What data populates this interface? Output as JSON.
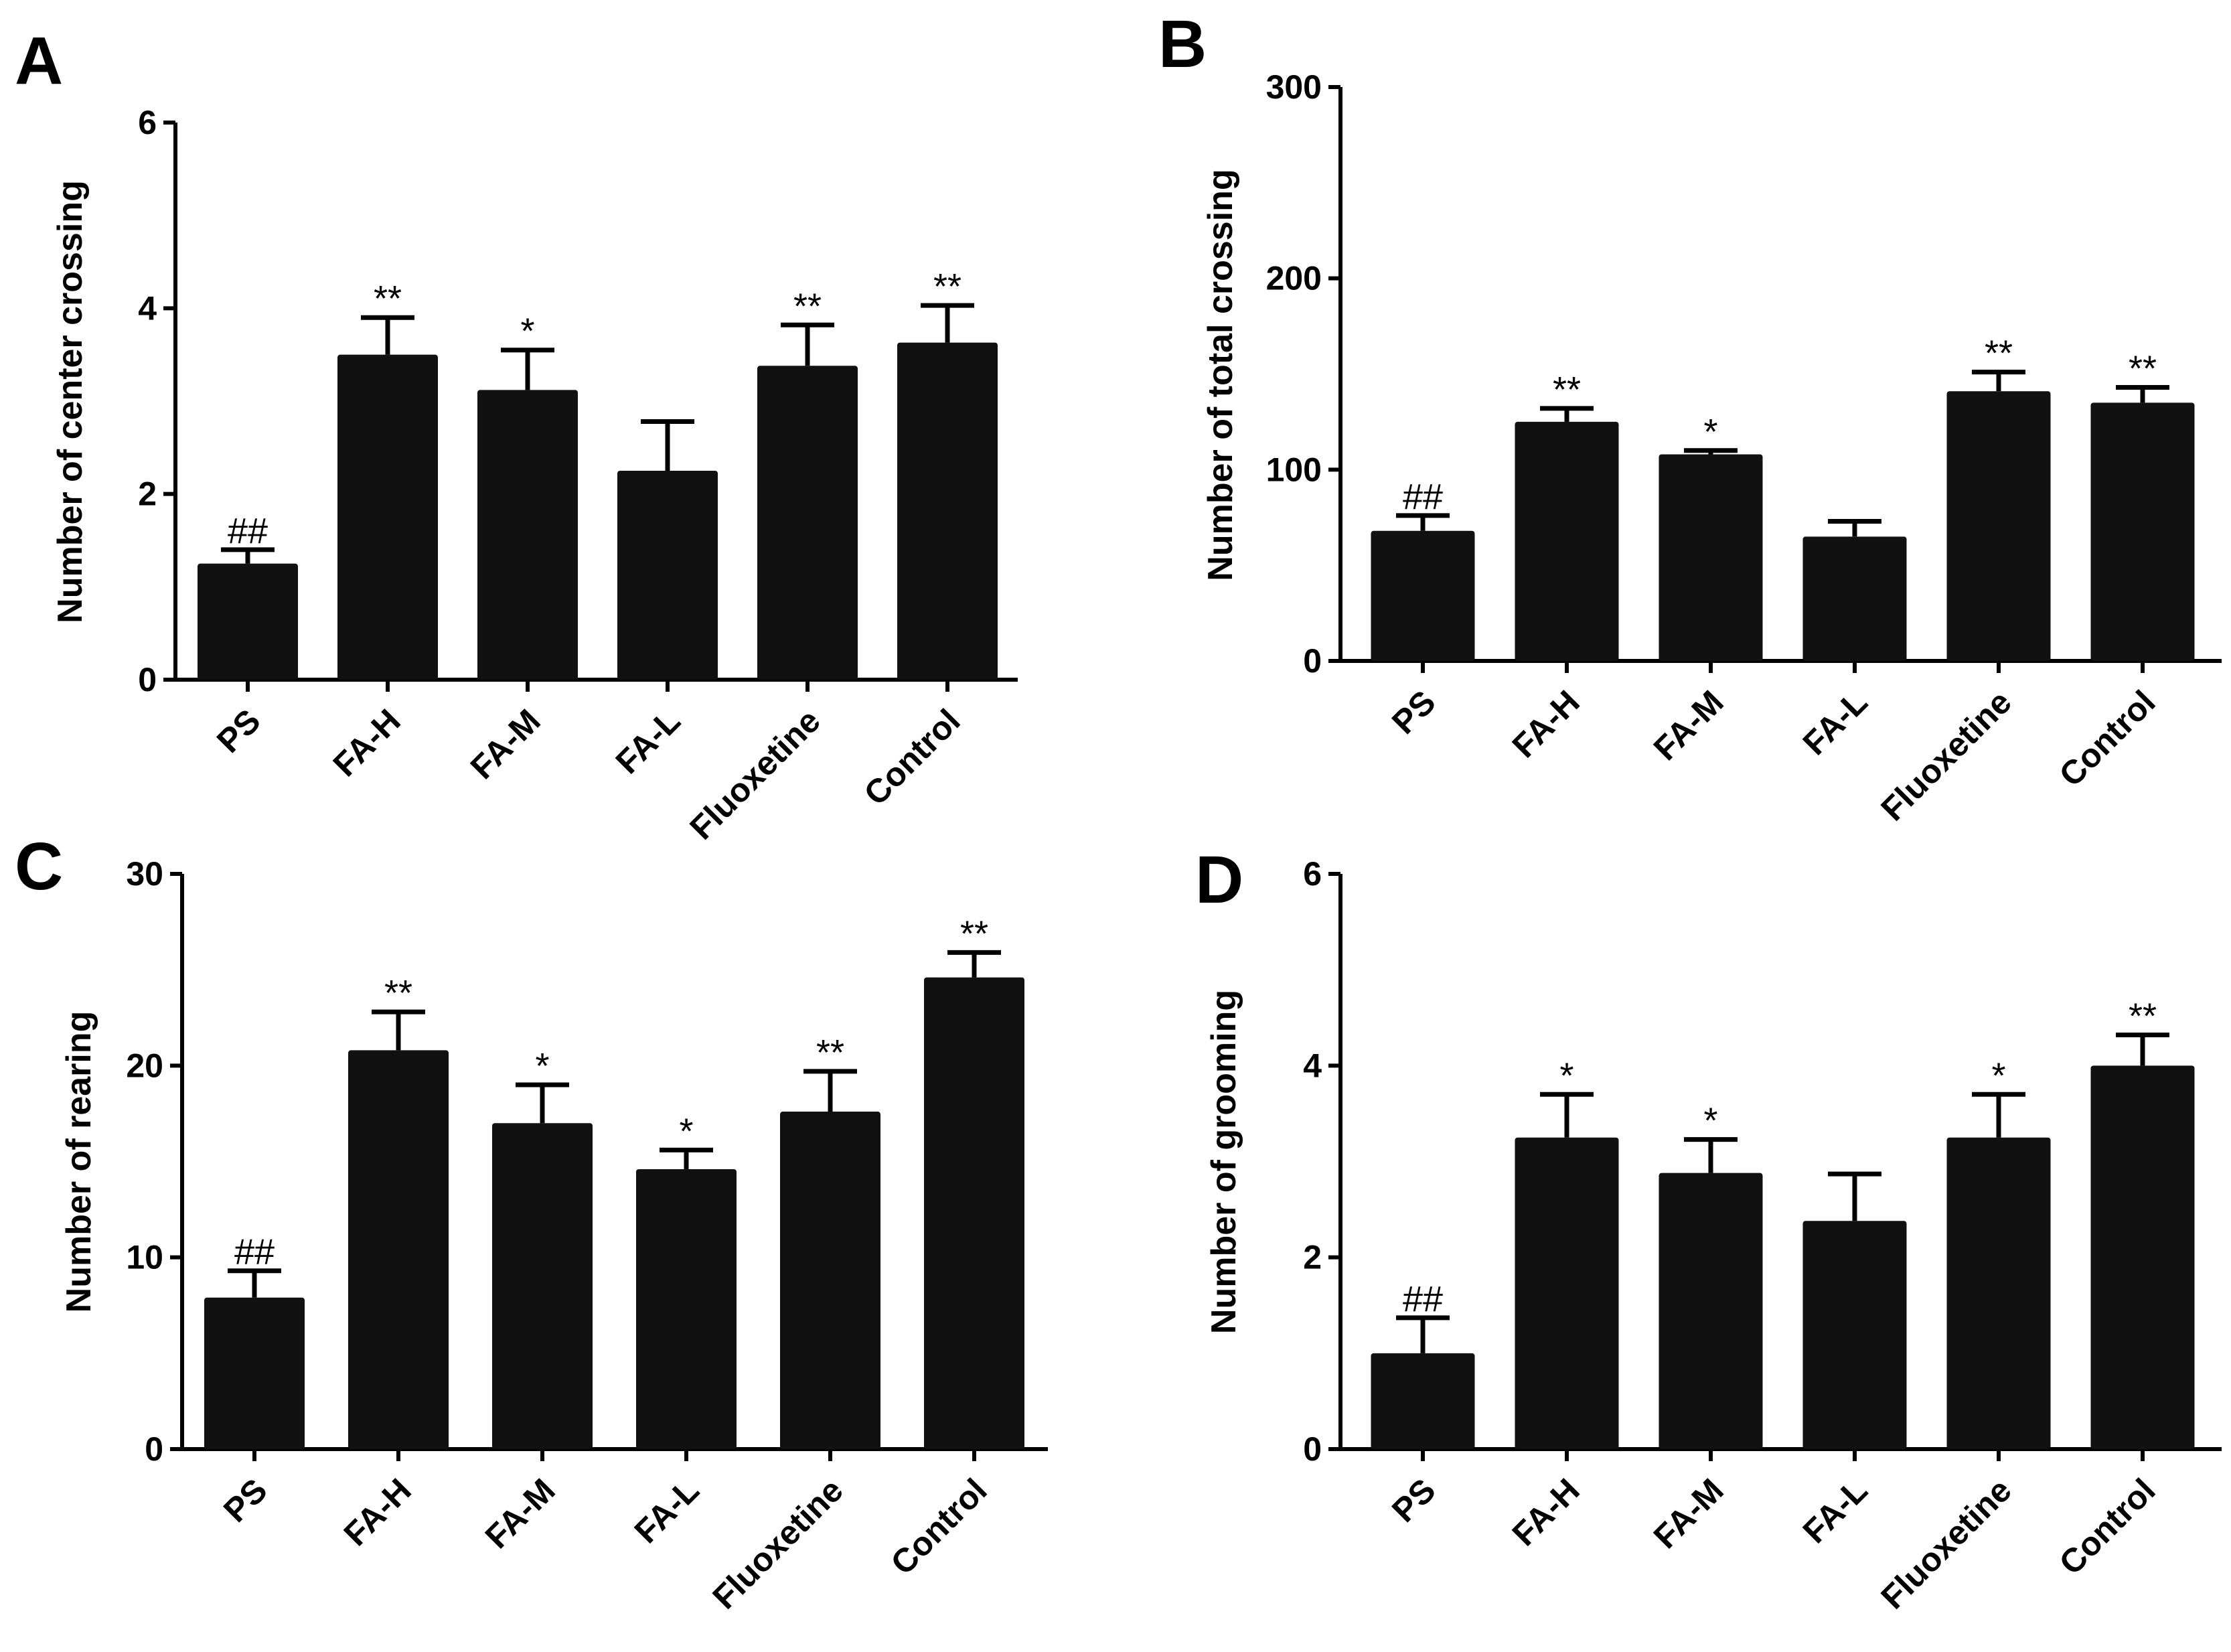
{
  "chart_data": [
    {
      "panel": "A",
      "type": "bar",
      "ylabel": "Number of center crossing",
      "categories": [
        "PS",
        "FA-H",
        "FA-M",
        "FA-L",
        "Fluoxetine",
        "Control"
      ],
      "values": [
        1.25,
        3.5,
        3.12,
        2.25,
        3.38,
        3.63
      ],
      "errors": [
        0.15,
        0.4,
        0.43,
        0.53,
        0.44,
        0.4
      ],
      "significance": [
        "##",
        "**",
        "*",
        "",
        "**",
        "**"
      ],
      "ylim": [
        0,
        6
      ],
      "yticks": [
        0,
        2,
        4,
        6
      ]
    },
    {
      "panel": "B",
      "type": "bar",
      "ylabel": "Number of total crossing",
      "categories": [
        "PS",
        "FA-H",
        "FA-M",
        "FA-L",
        "Fluoxetine",
        "Control"
      ],
      "values": [
        68,
        125,
        108,
        65,
        141,
        135
      ],
      "errors": [
        8,
        7,
        2,
        8,
        10,
        8
      ],
      "significance": [
        "##",
        "**",
        "*",
        "",
        "**",
        "**"
      ],
      "ylim": [
        0,
        300
      ],
      "yticks": [
        0,
        100,
        200,
        300
      ]
    },
    {
      "panel": "C",
      "type": "bar",
      "ylabel": "Number of rearing",
      "categories": [
        "PS",
        "FA-H",
        "FA-M",
        "FA-L",
        "Fluoxetine",
        "Control"
      ],
      "values": [
        7.9,
        20.8,
        17.0,
        14.6,
        17.6,
        24.6
      ],
      "errors": [
        1.4,
        2.0,
        2.0,
        1.0,
        2.1,
        1.3
      ],
      "significance": [
        "##",
        "**",
        "*",
        "*",
        "**",
        "**"
      ],
      "ylim": [
        0,
        30
      ],
      "yticks": [
        0,
        10,
        20,
        30
      ]
    },
    {
      "panel": "D",
      "type": "bar",
      "ylabel": "Number of grooming",
      "categories": [
        "PS",
        "FA-H",
        "FA-M",
        "FA-L",
        "Fluoxetine",
        "Control"
      ],
      "values": [
        1.0,
        3.25,
        2.88,
        2.38,
        3.25,
        4.0
      ],
      "errors": [
        0.37,
        0.45,
        0.35,
        0.49,
        0.45,
        0.32
      ],
      "significance": [
        "##",
        "*",
        "*",
        "",
        "*",
        "**"
      ],
      "ylim": [
        0,
        6
      ],
      "yticks": [
        0,
        2,
        4,
        6
      ]
    }
  ]
}
